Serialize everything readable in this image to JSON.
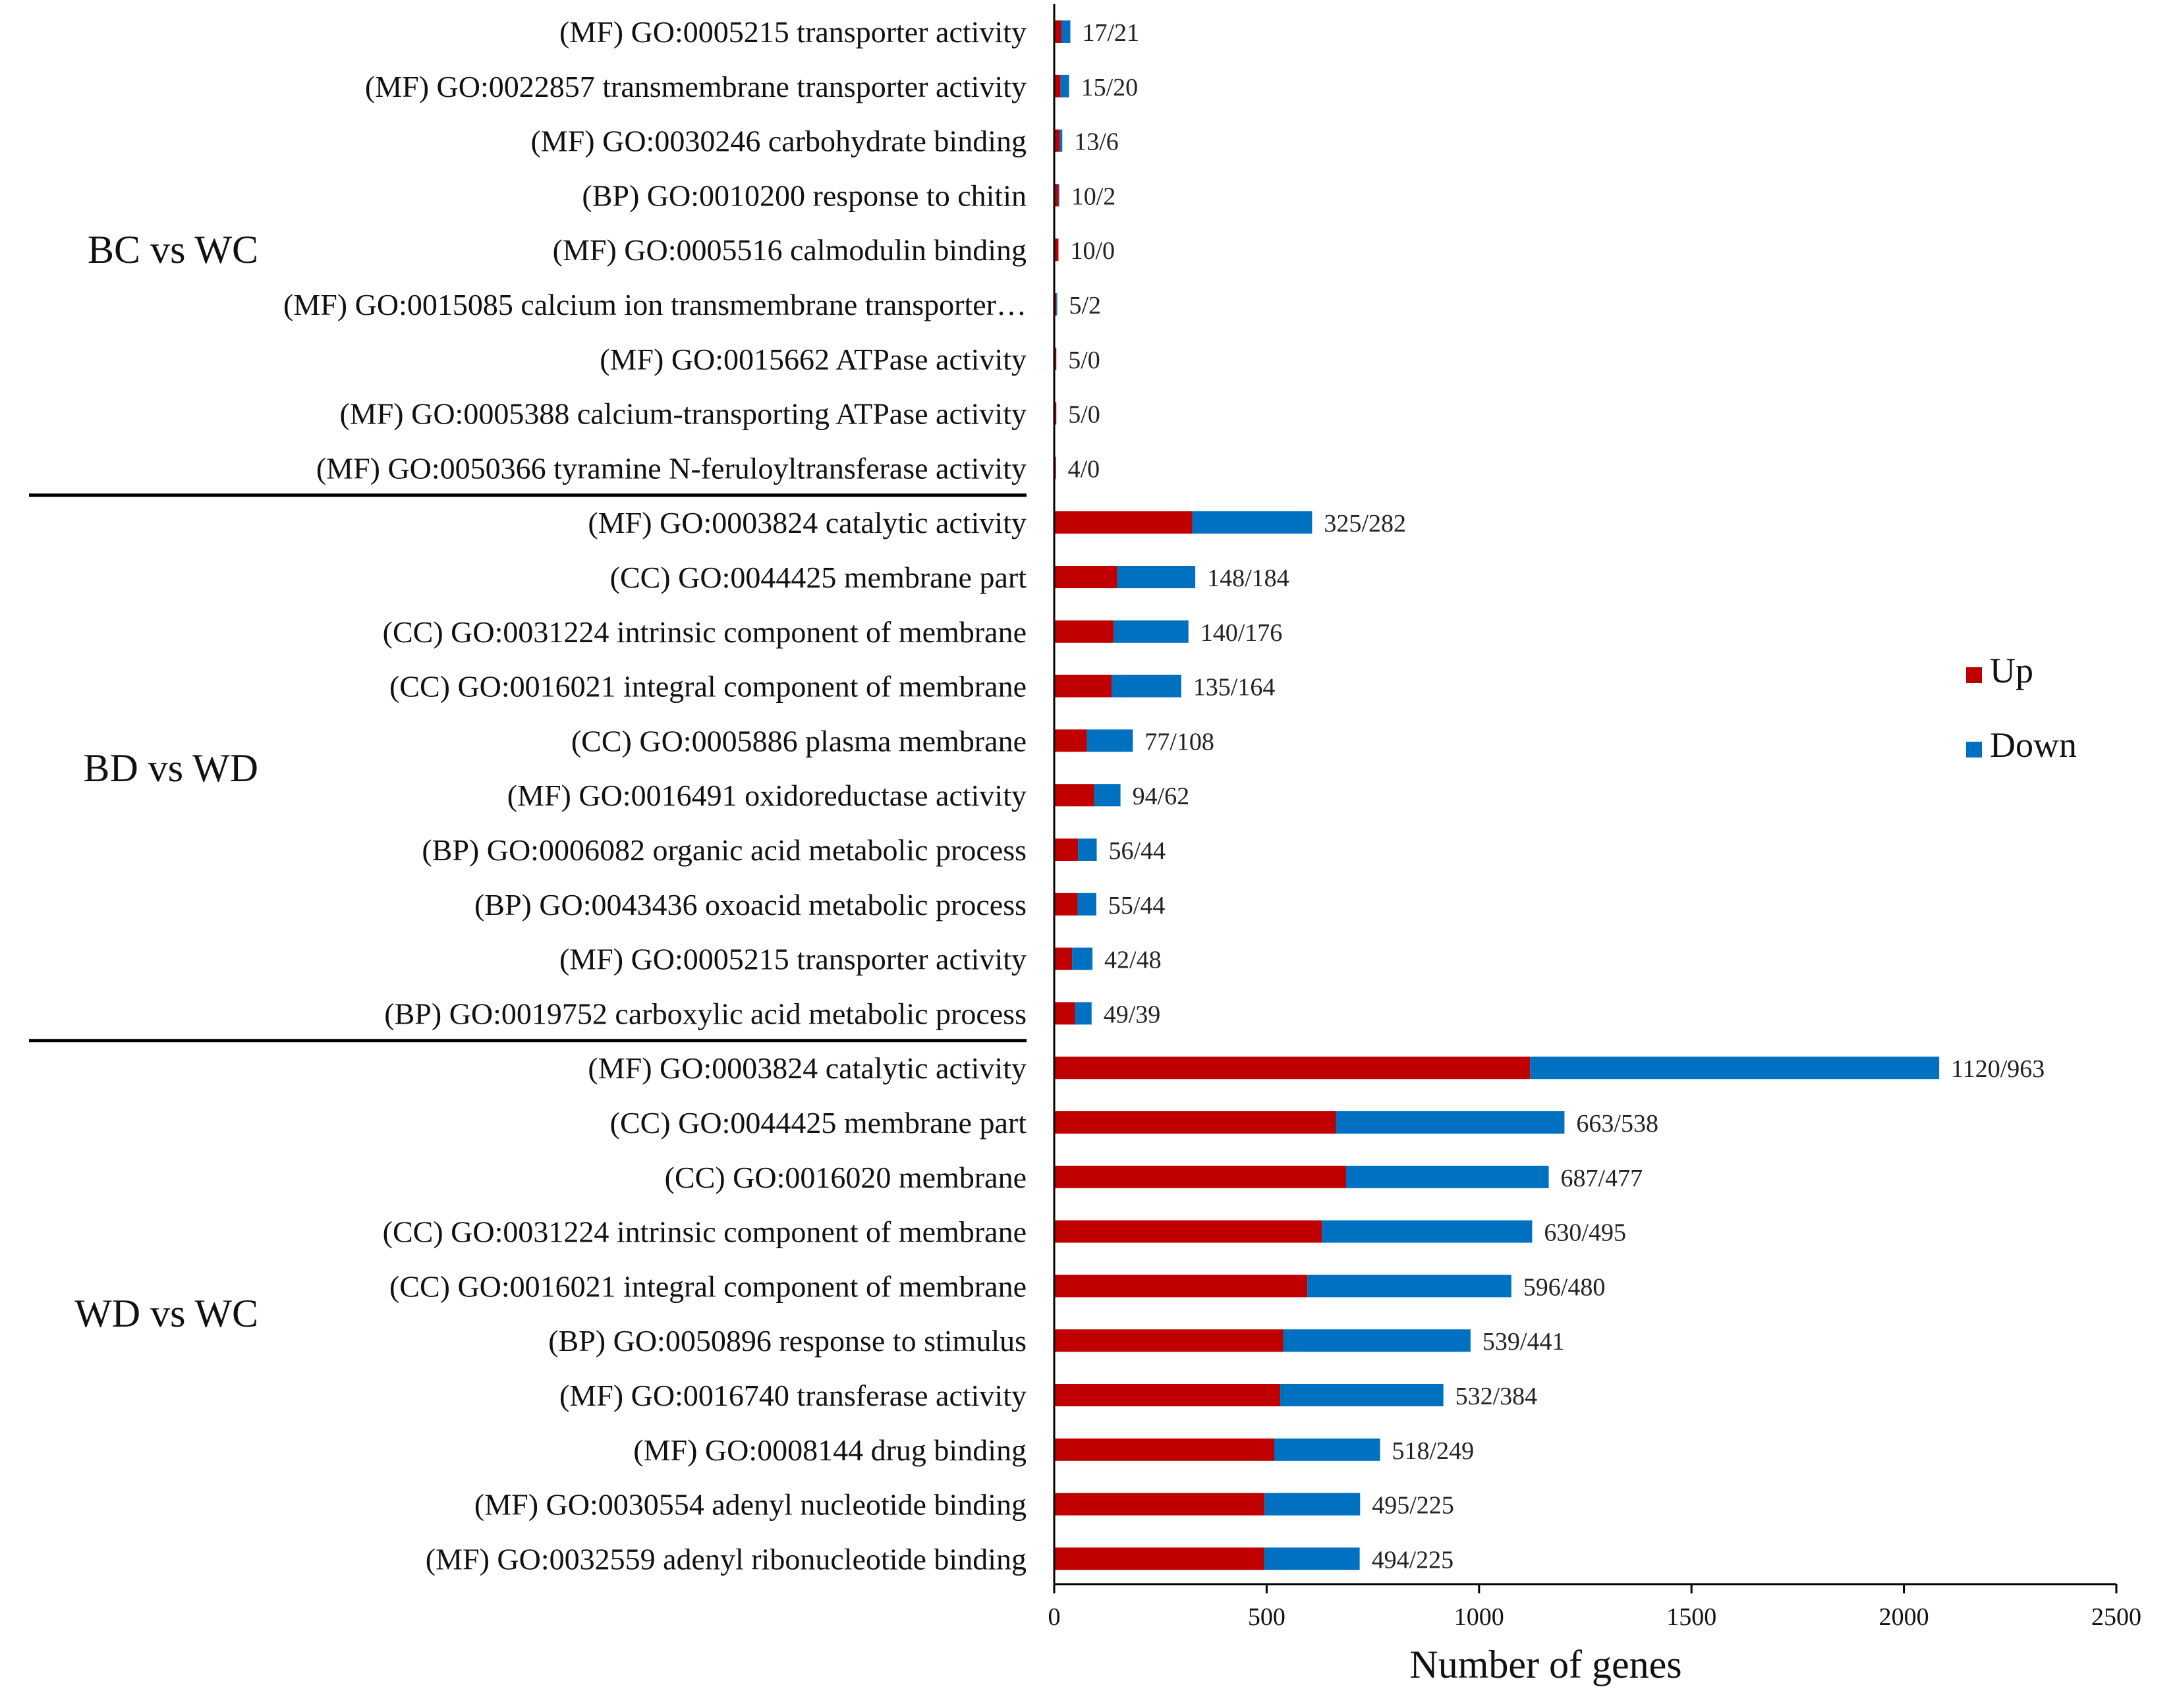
{
  "chart_data": {
    "type": "bar",
    "orientation": "horizontal",
    "stacked": true,
    "xlabel": "Number of genes",
    "xlim": [
      0,
      2500
    ],
    "xticks": [
      0,
      500,
      1000,
      1500,
      2000,
      2500
    ],
    "legend": {
      "placement": "right",
      "entries": [
        "Up",
        "Down"
      ]
    },
    "colors": {
      "up": "#c00000",
      "down": "#0070c0",
      "text": "#111111",
      "axis": "#000000"
    },
    "series_names": [
      "Up",
      "Down"
    ],
    "groups": [
      {
        "name": "BC vs WC",
        "categories": [
          {
            "label": "(MF) GO:0005215 transporter activity",
            "up": 17,
            "down": 21,
            "text": "17/21"
          },
          {
            "label": "(MF) GO:0022857 transmembrane transporter activity",
            "up": 15,
            "down": 20,
            "text": "15/20"
          },
          {
            "label": "(MF) GO:0030246 carbohydrate binding",
            "up": 13,
            "down": 6,
            "text": "13/6"
          },
          {
            "label": "(BP) GO:0010200 response to chitin",
            "up": 10,
            "down": 2,
            "text": "10/2"
          },
          {
            "label": "(MF) GO:0005516 calmodulin binding",
            "up": 10,
            "down": 0,
            "text": "10/0"
          },
          {
            "label": "(MF) GO:0015085 calcium ion transmembrane transporter…",
            "up": 5,
            "down": 2,
            "text": "5/2"
          },
          {
            "label": "(MF) GO:0015662 ATPase activity",
            "up": 5,
            "down": 0,
            "text": "5/0"
          },
          {
            "label": "(MF) GO:0005388 calcium-transporting ATPase activity",
            "up": 5,
            "down": 0,
            "text": "5/0"
          },
          {
            "label": "(MF) GO:0050366 tyramine N-feruloyltransferase activity",
            "up": 4,
            "down": 0,
            "text": "4/0"
          }
        ]
      },
      {
        "name": "BD vs WD",
        "categories": [
          {
            "label": "(MF) GO:0003824 catalytic activity",
            "up": 325,
            "down": 282,
            "text": "325/282"
          },
          {
            "label": "(CC) GO:0044425 membrane part",
            "up": 148,
            "down": 184,
            "text": "148/184"
          },
          {
            "label": "(CC) GO:0031224 intrinsic component of membrane",
            "up": 140,
            "down": 176,
            "text": "140/176"
          },
          {
            "label": "(CC) GO:0016021 integral component of membrane",
            "up": 135,
            "down": 164,
            "text": "135/164"
          },
          {
            "label": "(CC) GO:0005886 plasma membrane",
            "up": 77,
            "down": 108,
            "text": "77/108"
          },
          {
            "label": "(MF) GO:0016491 oxidoreductase activity",
            "up": 94,
            "down": 62,
            "text": "94/62"
          },
          {
            "label": "(BP) GO:0006082 organic acid metabolic process",
            "up": 56,
            "down": 44,
            "text": "56/44"
          },
          {
            "label": "(BP) GO:0043436 oxoacid metabolic process",
            "up": 55,
            "down": 44,
            "text": "55/44"
          },
          {
            "label": "(MF) GO:0005215 transporter activity",
            "up": 42,
            "down": 48,
            "text": "42/48"
          },
          {
            "label": "(BP) GO:0019752 carboxylic acid metabolic process",
            "up": 49,
            "down": 39,
            "text": "49/39"
          }
        ]
      },
      {
        "name": "WD vs WC",
        "categories": [
          {
            "label": "(MF) GO:0003824 catalytic activity",
            "up": 1120,
            "down": 963,
            "text": "1120/963"
          },
          {
            "label": "(CC) GO:0044425 membrane part",
            "up": 663,
            "down": 538,
            "text": "663/538"
          },
          {
            "label": "(CC) GO:0016020 membrane",
            "up": 687,
            "down": 477,
            "text": "687/477"
          },
          {
            "label": "(CC) GO:0031224 intrinsic component of membrane",
            "up": 630,
            "down": 495,
            "text": "630/495"
          },
          {
            "label": "(CC) GO:0016021 integral component of membrane",
            "up": 596,
            "down": 480,
            "text": "596/480"
          },
          {
            "label": "(BP) GO:0050896 response to stimulus",
            "up": 539,
            "down": 441,
            "text": "539/441"
          },
          {
            "label": "(MF) GO:0016740 transferase activity",
            "up": 532,
            "down": 384,
            "text": "532/384"
          },
          {
            "label": "(MF) GO:0008144 drug binding",
            "up": 518,
            "down": 249,
            "text": "518/249"
          },
          {
            "label": "(MF) GO:0030554 adenyl nucleotide binding",
            "up": 495,
            "down": 225,
            "text": "495/225"
          },
          {
            "label": "(MF) GO:0032559 adenyl ribonucleotide binding",
            "up": 494,
            "down": 225,
            "text": "494/225"
          }
        ]
      }
    ]
  }
}
